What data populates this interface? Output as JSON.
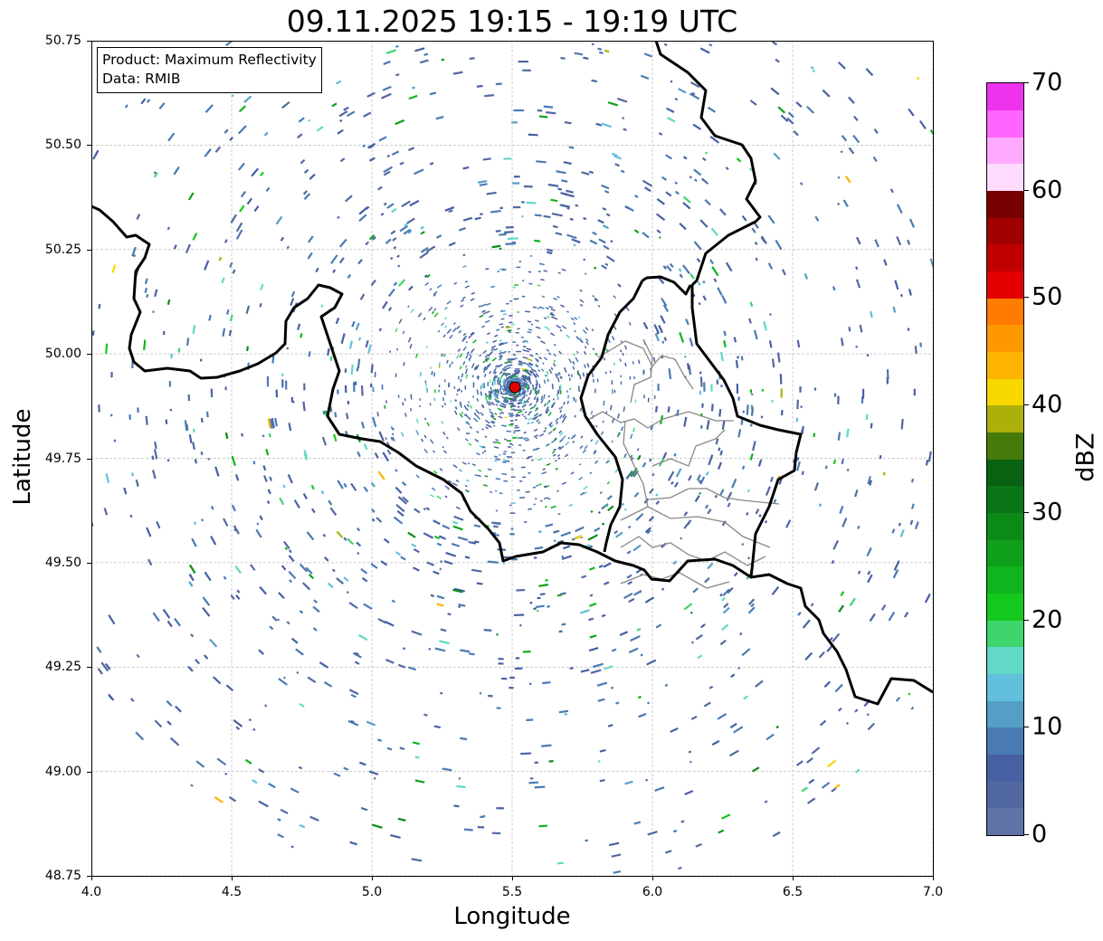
{
  "title": "09.11.2025 19:15 - 19:19 UTC",
  "legend": {
    "line1": "Product: Maximum Reflectivity",
    "line2": "Data: RMIB"
  },
  "axes": {
    "xlabel": "Longitude",
    "ylabel": "Latitude",
    "xticks": [
      "4.0",
      "4.5",
      "5.0",
      "5.5",
      "6.0",
      "6.5",
      "7.0"
    ],
    "yticks": [
      "50.75",
      "50.50",
      "50.25",
      "50.00",
      "49.75",
      "49.50",
      "49.25",
      "49.00",
      "48.75"
    ],
    "lon_range": [
      4.0,
      7.0
    ],
    "lat_range": [
      48.75,
      50.75
    ]
  },
  "radar_site": {
    "lon": 5.51,
    "lat": 49.92,
    "color": "#e00000"
  },
  "colorbar": {
    "label": "dBZ",
    "ticks": [
      "0",
      "10",
      "20",
      "30",
      "40",
      "50",
      "60",
      "70"
    ],
    "range": [
      0,
      70
    ],
    "step": 2.5,
    "colors": [
      "#6073a6",
      "#5268a0",
      "#4660a2",
      "#4a7ab2",
      "#559ec6",
      "#62c0dc",
      "#62d8c6",
      "#3ed66c",
      "#14c81e",
      "#10b41c",
      "#0ea01a",
      "#0c8a18",
      "#0a7618",
      "#086212",
      "#467a0a",
      "#acb00a",
      "#f8d600",
      "#fcb400",
      "#fe9800",
      "#ff7c00",
      "#e40000",
      "#c00000",
      "#a00000",
      "#780000",
      "#ffdcff",
      "#ffaaff",
      "#ff66ff",
      "#ee33ee"
    ]
  }
}
